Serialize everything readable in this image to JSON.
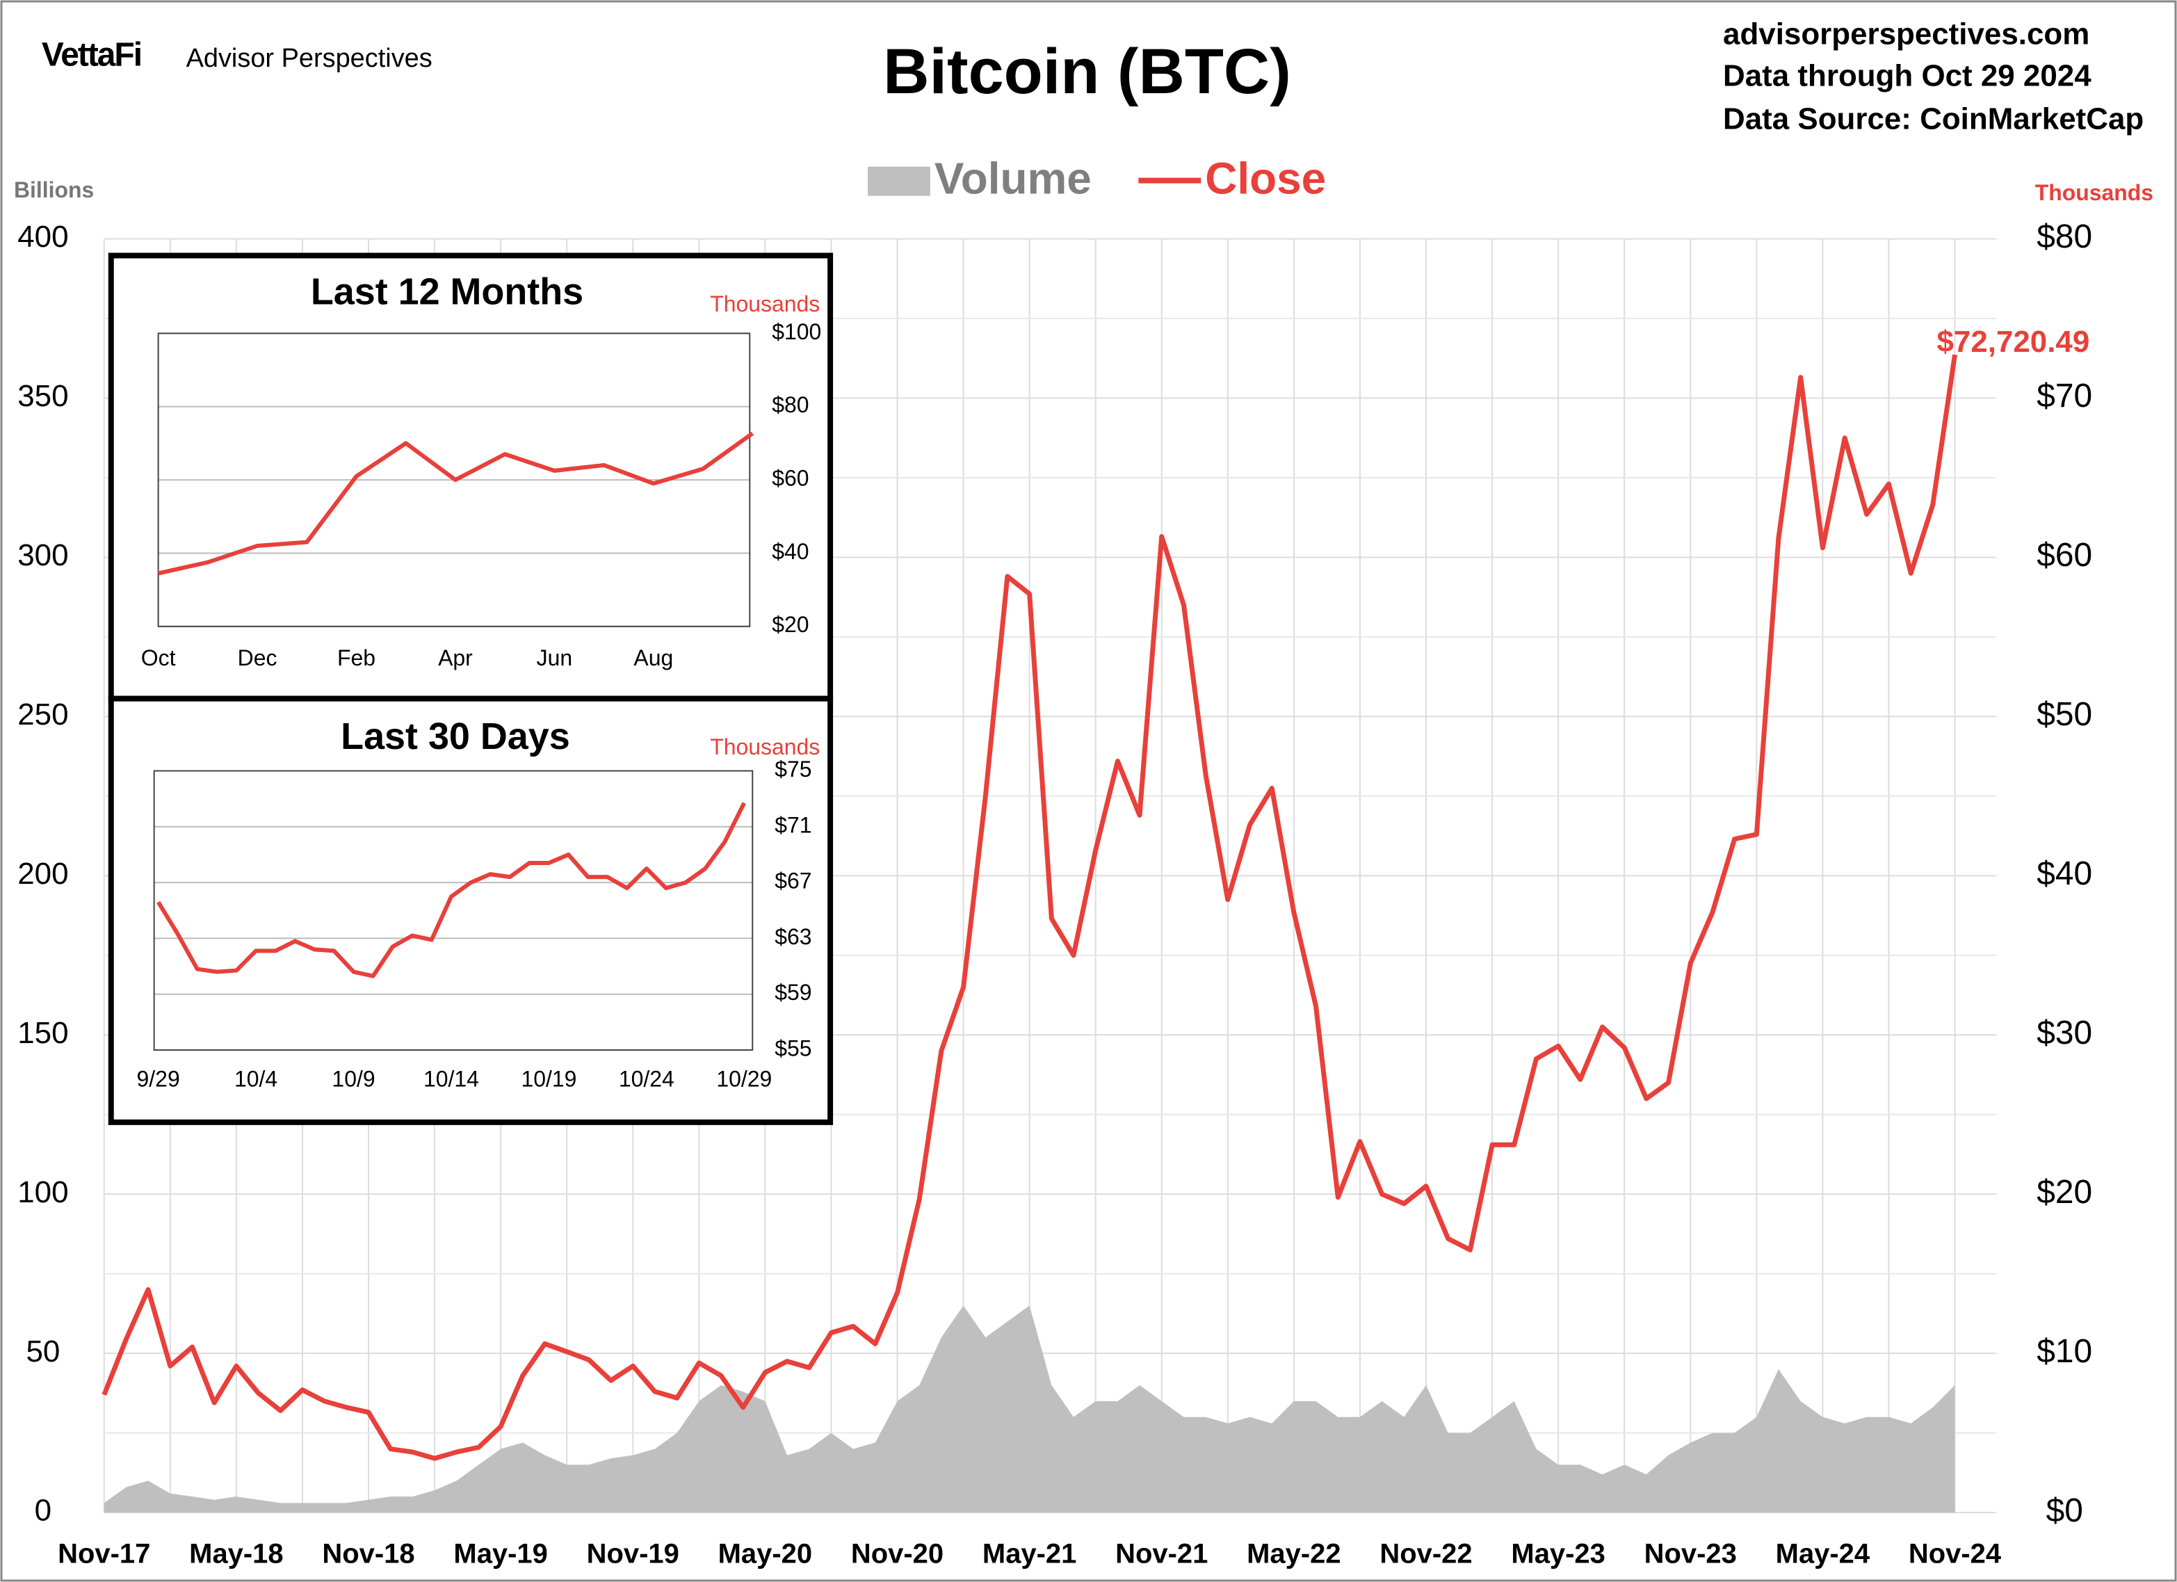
{
  "header": {
    "logo": "VettaFi",
    "brand": "Advisor Perspectives",
    "info": [
      "advisorperspectives.com",
      "Data through Oct 29 2024",
      "Data Source: CoinMarketCap"
    ]
  },
  "chart_data": [
    {
      "type": "combo",
      "title": "Bitcoin (BTC)",
      "legend": "top",
      "ylabel": "Billions",
      "y2label": "Thousands",
      "categories": [
        "Nov-17",
        null,
        null,
        null,
        null,
        null,
        "May-18",
        null,
        null,
        null,
        null,
        null,
        "Nov-18",
        null,
        null,
        null,
        null,
        null,
        "May-19",
        null,
        null,
        null,
        null,
        null,
        "Nov-19",
        null,
        null,
        null,
        null,
        null,
        "May-20",
        null,
        null,
        null,
        null,
        null,
        "Nov-20",
        null,
        null,
        null,
        null,
        null,
        "May-21",
        null,
        null,
        null,
        null,
        null,
        "Nov-21",
        null,
        null,
        null,
        null,
        null,
        "May-22",
        null,
        null,
        null,
        null,
        null,
        "Nov-22",
        null,
        null,
        null,
        null,
        null,
        "May-23",
        null,
        null,
        null,
        null,
        null,
        "Nov-23",
        null,
        null,
        null,
        null,
        null,
        "May-24",
        null,
        null,
        null,
        null,
        null,
        "Nov-24"
      ],
      "ylim": [
        0,
        400
      ],
      "yticks": [
        0,
        50,
        100,
        150,
        200,
        250,
        300,
        350,
        400
      ],
      "y2lim": [
        0,
        80
      ],
      "y2ticks": [
        {
          "value": 0,
          "label": "$0"
        },
        {
          "value": 10,
          "label": "$10"
        },
        {
          "value": 20,
          "label": "$20"
        },
        {
          "value": 30,
          "label": "$30"
        },
        {
          "value": 40,
          "label": "$40"
        },
        {
          "value": 50,
          "label": "$50"
        },
        {
          "value": 60,
          "label": "$60"
        },
        {
          "value": 70,
          "label": "$70"
        },
        {
          "value": 80,
          "label": "$80"
        }
      ],
      "grid": true,
      "series": [
        {
          "name": "Volume",
          "color": "#bfbfbf",
          "values": [
            3,
            8,
            10,
            6,
            5,
            4,
            5,
            4,
            3,
            3,
            3,
            3,
            4,
            5,
            5,
            7,
            10,
            15,
            20,
            22,
            18,
            15,
            15,
            17,
            18,
            20,
            25,
            35,
            40,
            38,
            35,
            18,
            20,
            25,
            20,
            22,
            35,
            40,
            55,
            65,
            55,
            60,
            65,
            40,
            30,
            35,
            35,
            40,
            35,
            30,
            30,
            28,
            30,
            28,
            35,
            35,
            30,
            30,
            35,
            30,
            40,
            25,
            25,
            30,
            35,
            20,
            15,
            15,
            12,
            15,
            12,
            18,
            22,
            25,
            25,
            30,
            45,
            35,
            30,
            28,
            30,
            30,
            28,
            33,
            40
          ]
        },
        {
          "name": "Close",
          "color": "#e8403a",
          "axis": "y2",
          "values": [
            7.4,
            10.9,
            14,
            9.2,
            10.4,
            6.9,
            9.2,
            7.5,
            6.4,
            7.7,
            7,
            6.6,
            6.3,
            4,
            3.8,
            3.4,
            3.8,
            4.1,
            5.4,
            8.6,
            10.6,
            10.1,
            9.6,
            8.3,
            9.2,
            7.6,
            7.2,
            9.4,
            8.6,
            6.6,
            8.8,
            9.5,
            9.1,
            11.3,
            11.7,
            10.6,
            13.8,
            19.7,
            29,
            33,
            45,
            58.8,
            57.7,
            37.3,
            35,
            41.6,
            47.2,
            43.8,
            61.3,
            57,
            46.3,
            38.5,
            43.2,
            45.5,
            37.7,
            31.8,
            19.8,
            23.3,
            20,
            19.4,
            20.5,
            17.2,
            16.5,
            23.1,
            23.1,
            28.5,
            29.3,
            27.2,
            30.5,
            29.2,
            26,
            27,
            34.5,
            37.7,
            42.3,
            42.6,
            61.2,
            71.3,
            60.6,
            67.5,
            62.7,
            64.6,
            59,
            63.3,
            72.72049
          ],
          "value_labels": [
            null,
            null,
            null,
            null,
            null,
            null,
            null,
            null,
            null,
            null,
            null,
            null,
            null,
            null,
            null,
            null,
            null,
            null,
            null,
            null,
            null,
            null,
            null,
            null,
            null,
            null,
            null,
            null,
            null,
            null,
            null,
            null,
            null,
            null,
            null,
            null,
            null,
            null,
            null,
            null,
            null,
            null,
            null,
            null,
            null,
            null,
            null,
            null,
            null,
            null,
            null,
            null,
            null,
            null,
            null,
            null,
            null,
            null,
            null,
            null,
            null,
            null,
            null,
            null,
            null,
            null,
            null,
            null,
            null,
            null,
            null,
            null,
            null,
            null,
            null,
            null,
            null,
            null,
            null,
            null,
            null,
            null,
            null,
            null,
            "$72,720.49"
          ]
        }
      ]
    },
    {
      "type": "line",
      "title": "Last 12 Months",
      "ylabel": "Thousands",
      "color": "#e8403a",
      "categories": [
        "Oct",
        null,
        "Dec",
        null,
        "Feb",
        null,
        "Apr",
        null,
        "Jun",
        null,
        "Aug",
        null,
        null
      ],
      "values": [
        34.5,
        37.5,
        42,
        43,
        61,
        70,
        60,
        67,
        62.5,
        64,
        59,
        63,
        72.72
      ],
      "ylim": [
        20,
        100
      ],
      "yticks": [
        {
          "value": 20,
          "label": "$20"
        },
        {
          "value": 40,
          "label": "$40"
        },
        {
          "value": 60,
          "label": "$60"
        },
        {
          "value": 80,
          "label": "$80"
        },
        {
          "value": 100,
          "label": "$100"
        }
      ],
      "grid": true
    },
    {
      "type": "line",
      "title": "Last 30 Days",
      "ylabel": "Thousands",
      "color": "#e8403a",
      "categories": [
        "9/29",
        null,
        null,
        null,
        null,
        "10/4",
        null,
        null,
        null,
        null,
        "10/9",
        null,
        null,
        null,
        null,
        "10/14",
        null,
        null,
        null,
        null,
        "10/19",
        null,
        null,
        null,
        null,
        "10/24",
        null,
        null,
        null,
        null,
        "10/29"
      ],
      "values": [
        65.6,
        63.3,
        60.8,
        60.6,
        60.7,
        62.1,
        62.1,
        62.8,
        62.2,
        62.1,
        60.6,
        60.3,
        62.4,
        63.2,
        62.9,
        66,
        67,
        67.6,
        67.4,
        68.4,
        68.4,
        69,
        67.4,
        67.4,
        66.6,
        68,
        66.6,
        67,
        68,
        69.9,
        72.7
      ],
      "ylim": [
        55,
        75
      ],
      "yticks": [
        {
          "value": 55,
          "label": "$55"
        },
        {
          "value": 59,
          "label": "$59"
        },
        {
          "value": 63,
          "label": "$63"
        },
        {
          "value": 67,
          "label": "$67"
        },
        {
          "value": 71,
          "label": "$71"
        },
        {
          "value": 75,
          "label": "$75"
        }
      ],
      "grid": true
    }
  ]
}
